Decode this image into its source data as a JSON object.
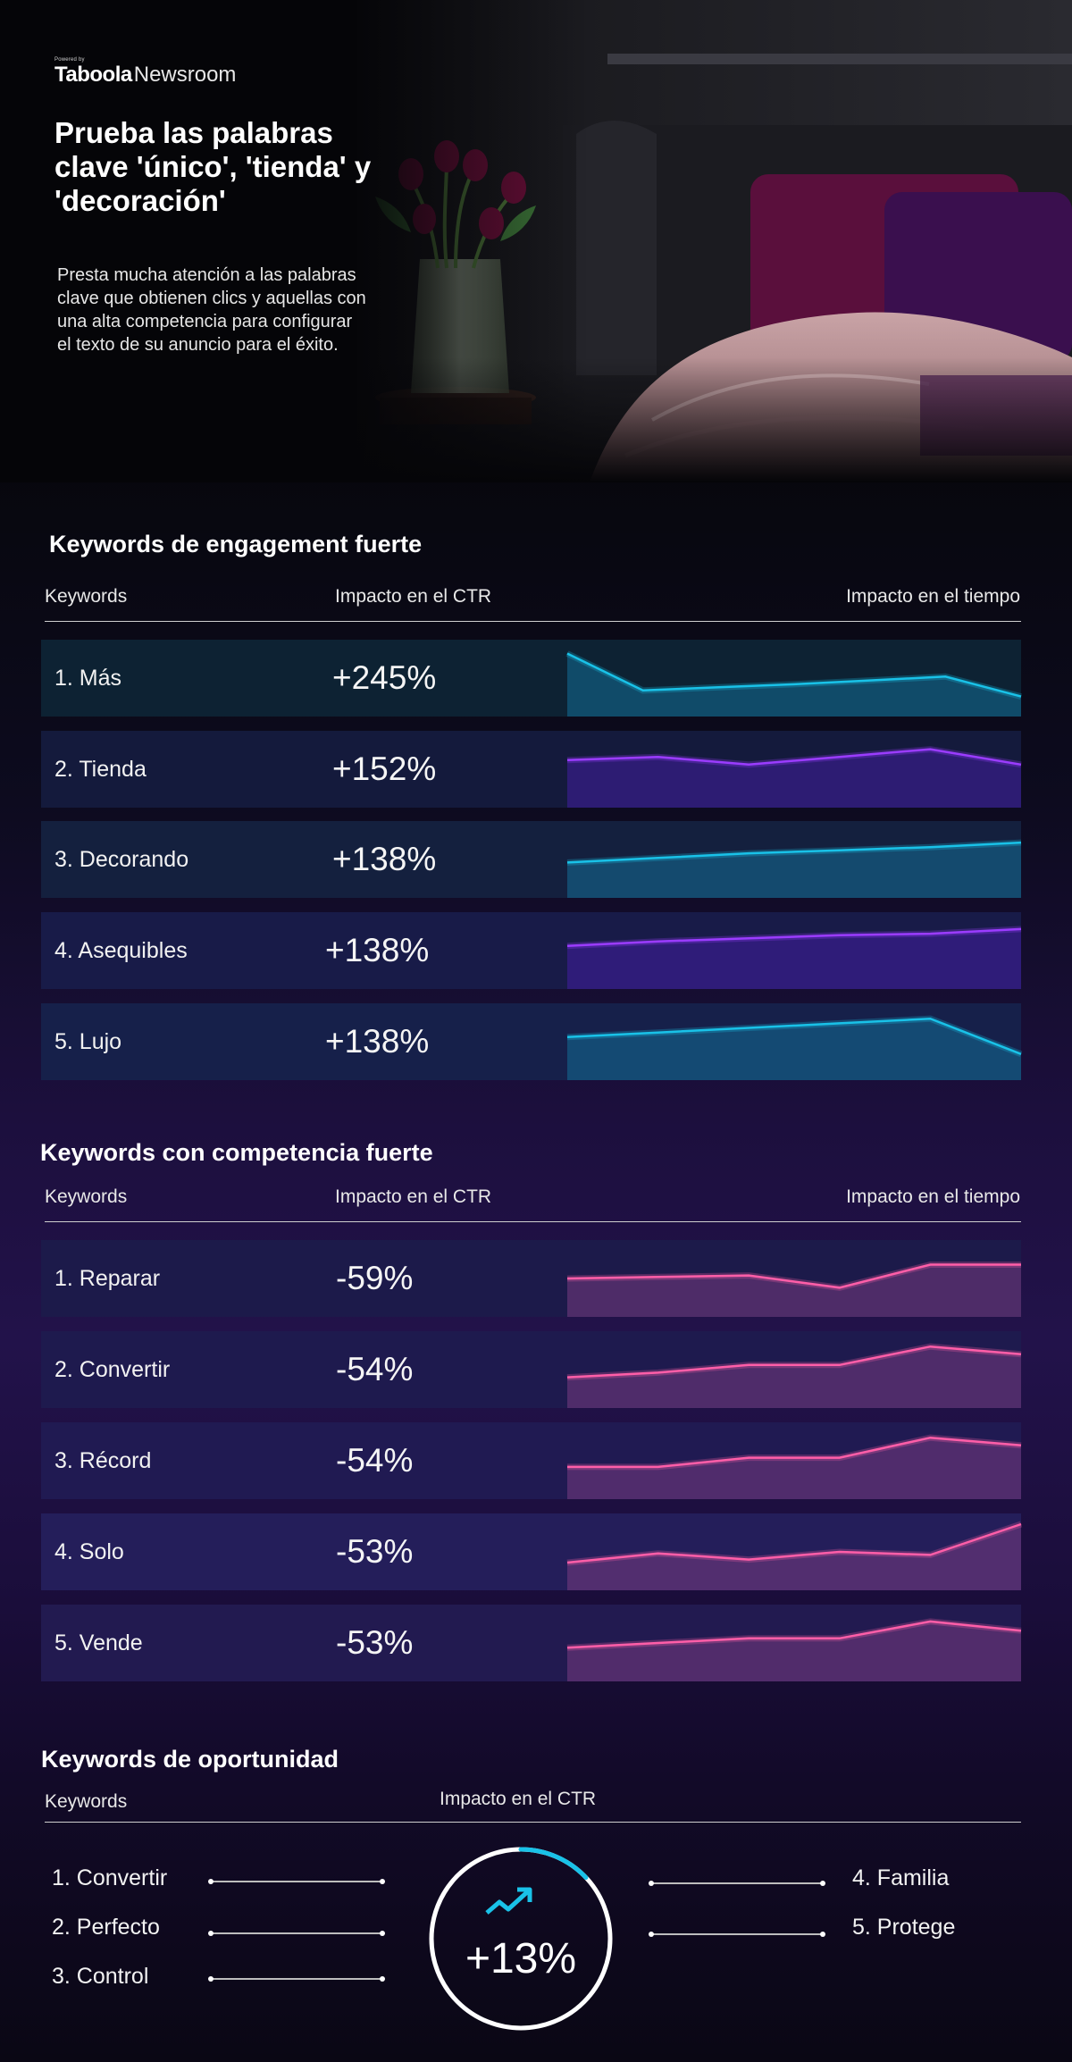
{
  "brand": {
    "powered_by": "Powered by",
    "name": "Taboola",
    "product": "Newsroom"
  },
  "hero": {
    "title": "Prueba las palabras clave 'único', 'tienda' y 'decoración'",
    "text": "Presta mucha atención a las palabras clave que obtienen clics y aquellas con una alta competencia para configurar el texto de su anuncio para el éxito."
  },
  "colors": {
    "cyan": "#19c2e8",
    "purple": "#9b3cff",
    "pink": "#ff5ea8",
    "row_cyan_fill": "#0e4a66",
    "row_purple_fill": "#2a1a66",
    "row_pink_fill": "#4a2a66"
  },
  "chart_data": [
    {
      "type": "table",
      "title": "Keywords de engagement fuerte",
      "columns": [
        "Keywords",
        "Impacto en el CTR",
        "Impacto en el tiempo"
      ],
      "rows": [
        {
          "label": "1. Más",
          "ctr": "+245%",
          "color": "cyan",
          "trend": [
            0.82,
            0.34,
            0.38,
            0.42,
            0.47,
            0.52,
            0.26
          ]
        },
        {
          "label": "2. Tienda",
          "ctr": "+152%",
          "color": "purple",
          "trend": [
            0.62,
            0.66,
            0.56,
            0.66,
            0.76,
            0.56
          ]
        },
        {
          "label": "3. Decorando",
          "ctr": "+138%",
          "color": "cyan",
          "trend": [
            0.46,
            0.52,
            0.58,
            0.62,
            0.66,
            0.72
          ]
        },
        {
          "label": "4. Asequibles",
          "ctr": "+138%",
          "color": "purple",
          "trend": [
            0.56,
            0.62,
            0.66,
            0.7,
            0.72,
            0.78
          ]
        },
        {
          "label": "5. Lujo",
          "ctr": "+138%",
          "color": "cyan",
          "trend": [
            0.56,
            0.62,
            0.68,
            0.74,
            0.8,
            0.34
          ]
        }
      ]
    },
    {
      "type": "table",
      "title": "Keywords con competencia fuerte",
      "columns": [
        "Keywords",
        "Impacto en el CTR",
        "Impacto en el tiempo"
      ],
      "rows": [
        {
          "label": "1. Reparar",
          "ctr": "-59%",
          "color": "pink",
          "trend": [
            0.5,
            0.52,
            0.54,
            0.38,
            0.68,
            0.68
          ]
        },
        {
          "label": "2. Convertir",
          "ctr": "-54%",
          "color": "pink",
          "trend": [
            0.4,
            0.46,
            0.56,
            0.56,
            0.8,
            0.7
          ]
        },
        {
          "label": "3. Récord",
          "ctr": "-54%",
          "color": "pink",
          "trend": [
            0.42,
            0.42,
            0.54,
            0.54,
            0.8,
            0.7
          ]
        },
        {
          "label": "4. Solo",
          "ctr": "-53%",
          "color": "pink",
          "trend": [
            0.36,
            0.48,
            0.4,
            0.5,
            0.46,
            0.86
          ]
        },
        {
          "label": "5. Vende",
          "ctr": "-53%",
          "color": "pink",
          "trend": [
            0.44,
            0.5,
            0.56,
            0.56,
            0.78,
            0.66
          ]
        }
      ]
    }
  ],
  "opportunity": {
    "title": "Keywords de oportunidad",
    "col_keywords": "Keywords",
    "col_ctr": "Impacto en el CTR",
    "left_items": [
      "1. Convertir",
      "2. Perfecto",
      "3. Control"
    ],
    "right_items": [
      "4. Familia",
      "5. Protege"
    ],
    "value": "+13%",
    "value_fraction": 0.13,
    "icon": "trend-up-icon"
  }
}
